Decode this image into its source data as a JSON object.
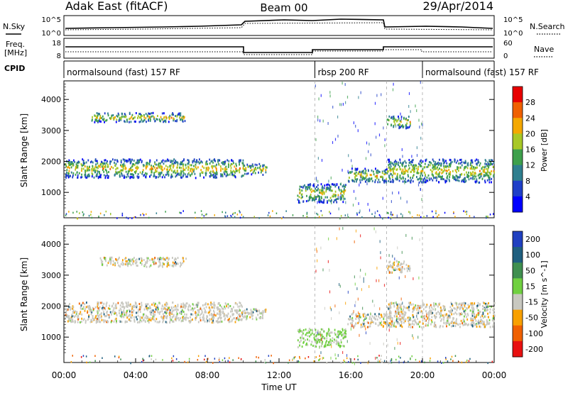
{
  "header": {
    "station": "Adak East (fitACF)",
    "beam": "Beam 00",
    "date": "29/Apr/2014"
  },
  "noise_panel": {
    "left_label": "N.Sky",
    "right_label": "N.Search",
    "left_ticks": [
      "10^5",
      "10^0"
    ],
    "right_ticks": [
      "10^5",
      "10^0"
    ]
  },
  "freq_panel": {
    "left_label_1": "Freq.",
    "left_label_2": "[MHz]",
    "right_label": "Nave",
    "left_ticks": [
      "18",
      "8"
    ],
    "right_ticks": [
      "60",
      "0"
    ]
  },
  "cpid": {
    "label": "CPID",
    "segments": [
      {
        "text": "normalsound (fast) 157 RF",
        "start_hour": 0,
        "end_hour": 14
      },
      {
        "text": "rbsp 200 RF",
        "start_hour": 14,
        "end_hour": 20
      },
      {
        "text": "normalsound (fast) 157 RF",
        "start_hour": 20,
        "end_hour": 24
      }
    ]
  },
  "x_axis": {
    "label": "Time UT",
    "ticks": [
      "00:00",
      "04:00",
      "08:00",
      "12:00",
      "16:00",
      "20:00",
      "00:00"
    ],
    "tick_hours": [
      0,
      4,
      8,
      12,
      16,
      20,
      24
    ]
  },
  "chart_data": [
    {
      "type": "heatmap",
      "name": "power",
      "ylabel": "Slant Range [km]",
      "yticks": [
        1000,
        2000,
        3000,
        4000
      ],
      "ylim": [
        180,
        4600
      ],
      "xlim_hours": [
        0,
        24
      ],
      "colorbar_label": "Power [dB]",
      "colorbar_ticks": [
        "4",
        "8",
        "12",
        "16",
        "20",
        "24",
        "28"
      ],
      "colors": [
        "#0000ff",
        "#1f3fc8",
        "#2f7f8f",
        "#3ea04c",
        "#a8c826",
        "#f4a800",
        "#f06000",
        "#e80000"
      ],
      "bands": [
        {
          "t0": 0.0,
          "t1": 10.0,
          "r0": 1500,
          "r1": 2100
        },
        {
          "t0": 10.0,
          "t1": 11.3,
          "r0": 1600,
          "r1": 1950
        },
        {
          "t0": 1.5,
          "t1": 6.8,
          "r0": 3300,
          "r1": 3600
        },
        {
          "t0": 13.0,
          "t1": 15.7,
          "r0": 700,
          "r1": 1300
        },
        {
          "t0": 15.8,
          "t1": 18.0,
          "r0": 1350,
          "r1": 1800
        },
        {
          "t0": 18.0,
          "t1": 24.0,
          "r0": 1350,
          "r1": 2100
        },
        {
          "t0": 18.0,
          "t1": 19.3,
          "r0": 3100,
          "r1": 3500
        }
      ]
    },
    {
      "type": "heatmap",
      "name": "velocity",
      "ylabel": "Slant Range [km]",
      "yticks": [
        1000,
        2000,
        3000,
        4000
      ],
      "ylim": [
        180,
        4600
      ],
      "xlim_hours": [
        0,
        24
      ],
      "colorbar_label": "Velocity [m s^-1]",
      "colorbar_ticks": [
        "200",
        "100",
        "50",
        "15",
        "-15",
        "-50",
        "-100",
        "-200"
      ],
      "colors": [
        "#2040c0",
        "#1f5f7f",
        "#3f8f4f",
        "#70d040",
        "#c8c8c0",
        "#f8a000",
        "#f06000",
        "#e81010"
      ],
      "bands": [
        {
          "t0": 0.0,
          "t1": 10.0,
          "r0": 1500,
          "r1": 2150
        },
        {
          "t0": 10.0,
          "t1": 11.3,
          "r0": 1600,
          "r1": 1950
        },
        {
          "t0": 2.0,
          "t1": 6.8,
          "r0": 3300,
          "r1": 3600
        },
        {
          "t0": 13.0,
          "t1": 15.7,
          "r0": 700,
          "r1": 1300
        },
        {
          "t0": 15.8,
          "t1": 18.0,
          "r0": 1350,
          "r1": 1800
        },
        {
          "t0": 18.0,
          "t1": 24.0,
          "r0": 1350,
          "r1": 2150
        },
        {
          "t0": 18.0,
          "t1": 19.3,
          "r0": 3100,
          "r1": 3500
        }
      ]
    }
  ]
}
